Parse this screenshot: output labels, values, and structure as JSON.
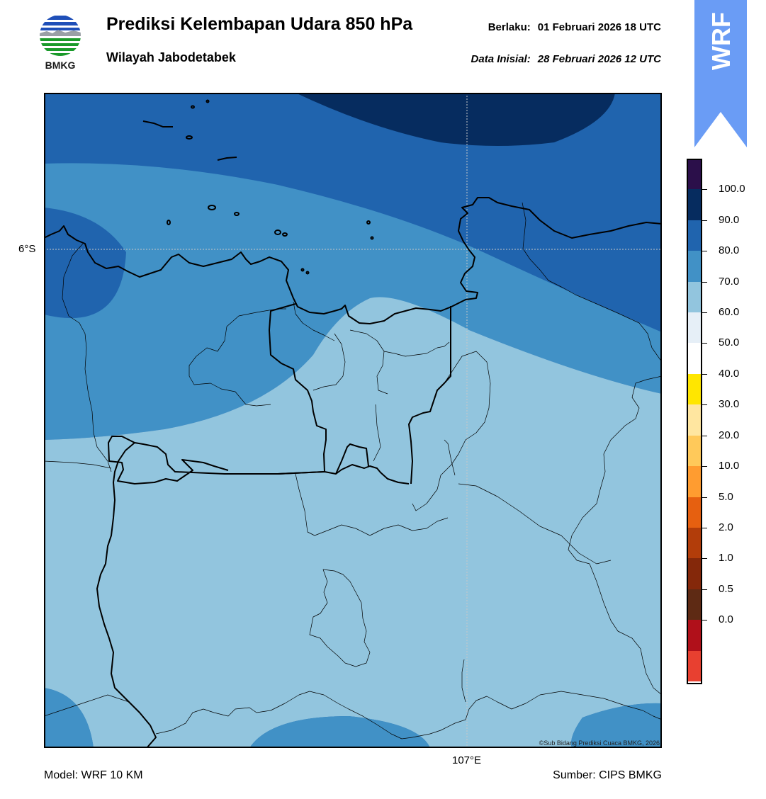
{
  "header": {
    "logo_text": "BMKG",
    "title": "Prediksi Kelembapan Udara 850 hPa",
    "region": "Wilayah Jabodetabek",
    "valid_label": "Berlaku:",
    "valid_value": "01 Februari 2026 18 UTC",
    "init_label": "Data Inisial:",
    "init_value": "28 Februari 2026 12 UTC"
  },
  "badge": {
    "text": "WRF",
    "color": "#6a9cf5"
  },
  "map": {
    "lat_label": "6°S",
    "lon_label": "107°E",
    "copyright": "©Sub Bidang Prediksi Cuaca BMKG, 2026"
  },
  "footer": {
    "model": "Model: WRF 10 KM",
    "source": "Sumber: CIPS BMKG"
  },
  "colorbar": {
    "labels": [
      "100.0",
      "90.0",
      "80.0",
      "70.0",
      "60.0",
      "50.0",
      "40.0",
      "30.0",
      "20.0",
      "10.0",
      "5.0",
      "2.0",
      "1.0",
      "0.5",
      "0.0"
    ],
    "colors": [
      "#2b0f4a",
      "#062c5f",
      "#2064ae",
      "#4191c6",
      "#92c5de",
      "#e6eff7",
      "#ffffff",
      "#ffe600",
      "#ffe6a0",
      "#ffc95a",
      "#ff9c30",
      "#e66010",
      "#b23d0a",
      "#84280a",
      "#5e2a14",
      "#b0101a",
      "#e84030"
    ]
  }
}
